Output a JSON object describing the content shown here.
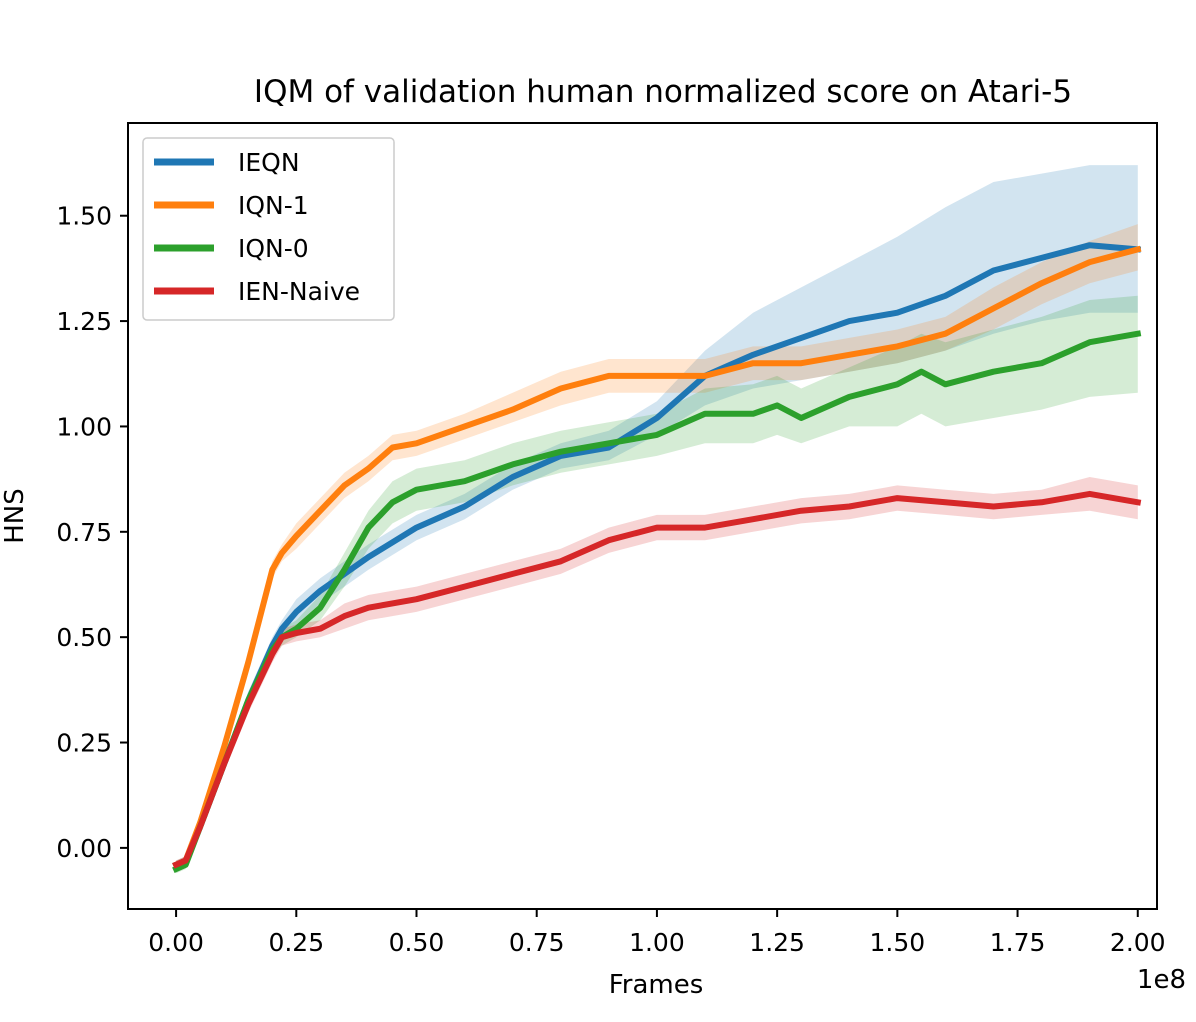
{
  "chart_data": {
    "type": "line",
    "title": "IQM of validation human normalized score on Atari-5",
    "xlabel": "Frames",
    "ylabel": "HNS",
    "x_offset_label": "1e8",
    "xlim": [
      -0.1,
      2.04
    ],
    "ylim": [
      -0.145,
      1.72
    ],
    "x_ticks": [
      0.0,
      0.25,
      0.5,
      0.75,
      1.0,
      1.25,
      1.5,
      1.75,
      2.0
    ],
    "x_tick_labels": [
      "0.00",
      "0.25",
      "0.50",
      "0.75",
      "1.00",
      "1.25",
      "1.50",
      "1.75",
      "2.00"
    ],
    "y_ticks": [
      0.0,
      0.25,
      0.5,
      0.75,
      1.0,
      1.25,
      1.5
    ],
    "y_tick_labels": [
      "0.00",
      "0.25",
      "0.50",
      "0.75",
      "1.00",
      "1.25",
      "1.50"
    ],
    "grid": false,
    "legend_position": "top-left",
    "series": [
      {
        "name": "IEQN",
        "color": "#1f77b4",
        "x": [
          0.0,
          0.02,
          0.05,
          0.1,
          0.15,
          0.2,
          0.22,
          0.25,
          0.3,
          0.35,
          0.4,
          0.5,
          0.6,
          0.7,
          0.8,
          0.9,
          1.0,
          1.1,
          1.2,
          1.3,
          1.4,
          1.5,
          1.6,
          1.7,
          1.8,
          1.9,
          2.0
        ],
        "y": [
          -0.04,
          -0.03,
          0.05,
          0.2,
          0.35,
          0.48,
          0.52,
          0.56,
          0.61,
          0.65,
          0.69,
          0.76,
          0.81,
          0.88,
          0.93,
          0.95,
          1.02,
          1.12,
          1.17,
          1.21,
          1.25,
          1.27,
          1.31,
          1.37,
          1.4,
          1.43,
          1.42
        ],
        "lower": [
          -0.05,
          -0.04,
          0.03,
          0.18,
          0.33,
          0.46,
          0.5,
          0.53,
          0.58,
          0.62,
          0.66,
          0.73,
          0.78,
          0.85,
          0.9,
          0.92,
          0.98,
          1.05,
          1.09,
          1.11,
          1.13,
          1.15,
          1.18,
          1.22,
          1.25,
          1.27,
          1.27
        ],
        "upper": [
          -0.03,
          -0.02,
          0.07,
          0.22,
          0.37,
          0.5,
          0.54,
          0.59,
          0.64,
          0.68,
          0.72,
          0.79,
          0.84,
          0.91,
          0.96,
          0.99,
          1.06,
          1.18,
          1.27,
          1.33,
          1.39,
          1.45,
          1.52,
          1.58,
          1.6,
          1.62,
          1.62
        ]
      },
      {
        "name": "IQN-1",
        "color": "#ff7f0e",
        "x": [
          0.0,
          0.02,
          0.05,
          0.1,
          0.15,
          0.2,
          0.22,
          0.25,
          0.3,
          0.35,
          0.4,
          0.45,
          0.5,
          0.6,
          0.7,
          0.8,
          0.9,
          1.0,
          1.1,
          1.2,
          1.3,
          1.4,
          1.5,
          1.6,
          1.7,
          1.8,
          1.9,
          2.0
        ],
        "y": [
          -0.04,
          -0.03,
          0.06,
          0.24,
          0.44,
          0.66,
          0.7,
          0.74,
          0.8,
          0.86,
          0.9,
          0.95,
          0.96,
          1.0,
          1.04,
          1.09,
          1.12,
          1.12,
          1.12,
          1.15,
          1.15,
          1.17,
          1.19,
          1.22,
          1.28,
          1.34,
          1.39,
          1.42
        ],
        "lower": [
          -0.05,
          -0.04,
          0.04,
          0.22,
          0.42,
          0.64,
          0.68,
          0.71,
          0.77,
          0.83,
          0.87,
          0.92,
          0.93,
          0.97,
          1.01,
          1.05,
          1.08,
          1.08,
          1.08,
          1.11,
          1.11,
          1.13,
          1.15,
          1.18,
          1.23,
          1.29,
          1.34,
          1.37
        ],
        "upper": [
          -0.03,
          -0.02,
          0.08,
          0.26,
          0.46,
          0.68,
          0.72,
          0.77,
          0.83,
          0.89,
          0.93,
          0.98,
          0.99,
          1.03,
          1.08,
          1.13,
          1.16,
          1.16,
          1.16,
          1.19,
          1.19,
          1.21,
          1.23,
          1.26,
          1.33,
          1.39,
          1.44,
          1.48
        ]
      },
      {
        "name": "IQN-0",
        "color": "#2ca02c",
        "x": [
          0.0,
          0.02,
          0.05,
          0.1,
          0.15,
          0.2,
          0.22,
          0.25,
          0.3,
          0.35,
          0.4,
          0.45,
          0.5,
          0.55,
          0.6,
          0.7,
          0.8,
          0.9,
          1.0,
          1.1,
          1.2,
          1.25,
          1.3,
          1.4,
          1.5,
          1.55,
          1.6,
          1.7,
          1.8,
          1.9,
          2.0
        ],
        "y": [
          -0.05,
          -0.04,
          0.05,
          0.2,
          0.35,
          0.47,
          0.5,
          0.52,
          0.57,
          0.66,
          0.76,
          0.82,
          0.85,
          0.86,
          0.87,
          0.91,
          0.94,
          0.96,
          0.98,
          1.03,
          1.03,
          1.05,
          1.02,
          1.07,
          1.1,
          1.13,
          1.1,
          1.13,
          1.15,
          1.2,
          1.22
        ],
        "lower": [
          -0.06,
          -0.05,
          0.03,
          0.18,
          0.33,
          0.45,
          0.48,
          0.5,
          0.54,
          0.62,
          0.71,
          0.77,
          0.8,
          0.81,
          0.82,
          0.86,
          0.89,
          0.91,
          0.93,
          0.96,
          0.96,
          0.98,
          0.96,
          1.0,
          1.0,
          1.03,
          1.0,
          1.02,
          1.04,
          1.07,
          1.08
        ],
        "upper": [
          -0.04,
          -0.03,
          0.07,
          0.22,
          0.37,
          0.49,
          0.52,
          0.54,
          0.6,
          0.7,
          0.8,
          0.87,
          0.9,
          0.91,
          0.92,
          0.96,
          0.99,
          1.01,
          1.03,
          1.09,
          1.1,
          1.12,
          1.09,
          1.14,
          1.19,
          1.22,
          1.2,
          1.23,
          1.26,
          1.3,
          1.31
        ]
      },
      {
        "name": "IEN-Naive",
        "color": "#d62728",
        "x": [
          0.0,
          0.02,
          0.05,
          0.1,
          0.15,
          0.2,
          0.22,
          0.25,
          0.3,
          0.35,
          0.4,
          0.5,
          0.6,
          0.7,
          0.8,
          0.9,
          1.0,
          1.1,
          1.2,
          1.3,
          1.4,
          1.5,
          1.6,
          1.7,
          1.8,
          1.9,
          2.0
        ],
        "y": [
          -0.04,
          -0.03,
          0.05,
          0.2,
          0.34,
          0.46,
          0.5,
          0.51,
          0.52,
          0.55,
          0.57,
          0.59,
          0.62,
          0.65,
          0.68,
          0.73,
          0.76,
          0.76,
          0.78,
          0.8,
          0.81,
          0.83,
          0.82,
          0.81,
          0.82,
          0.84,
          0.82
        ],
        "lower": [
          -0.05,
          -0.04,
          0.03,
          0.18,
          0.32,
          0.44,
          0.48,
          0.49,
          0.5,
          0.52,
          0.54,
          0.56,
          0.59,
          0.62,
          0.65,
          0.7,
          0.73,
          0.73,
          0.75,
          0.77,
          0.78,
          0.8,
          0.79,
          0.78,
          0.79,
          0.8,
          0.78
        ],
        "upper": [
          -0.03,
          -0.02,
          0.07,
          0.22,
          0.36,
          0.48,
          0.52,
          0.53,
          0.54,
          0.58,
          0.6,
          0.62,
          0.65,
          0.68,
          0.71,
          0.76,
          0.79,
          0.79,
          0.81,
          0.83,
          0.84,
          0.86,
          0.85,
          0.84,
          0.85,
          0.88,
          0.86
        ]
      }
    ]
  }
}
